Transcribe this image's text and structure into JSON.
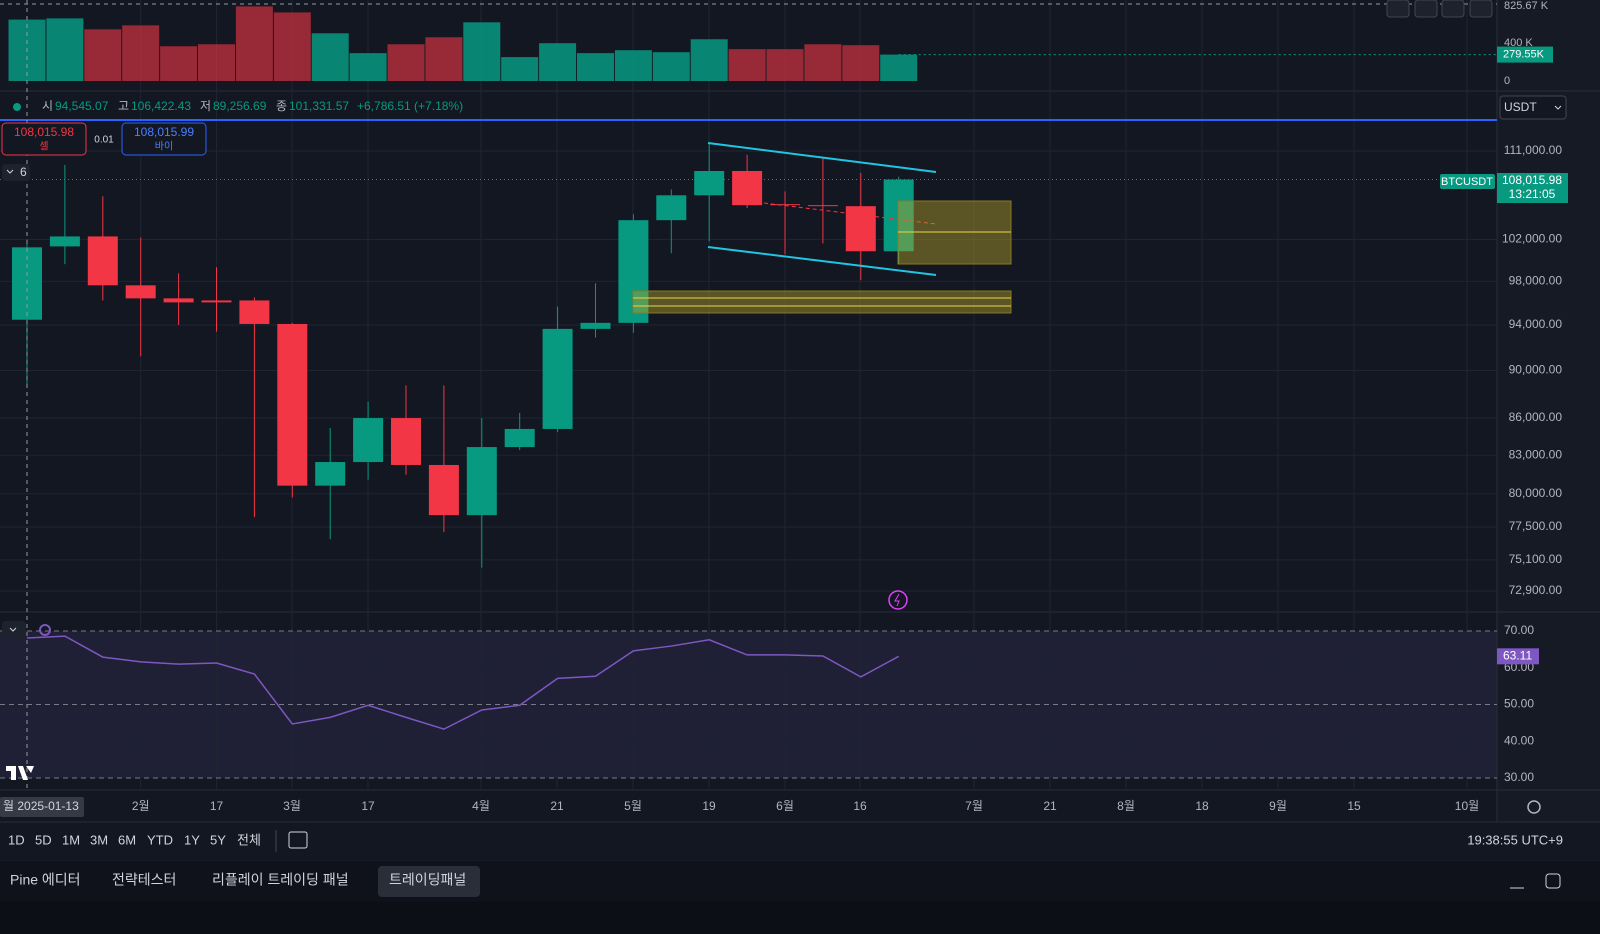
{
  "volume_axis": {
    "ticks": [
      {
        "value": 825.67,
        "label": "825.67 K"
      },
      {
        "value": 400,
        "label": "400 K"
      },
      0
    ],
    "current": {
      "value": 279.55,
      "label": "279.55K"
    }
  },
  "volume": [
    650,
    663,
    547,
    589,
    368,
    389,
    790,
    726,
    505,
    295,
    389,
    463,
    621,
    253,
    400,
    295,
    326,
    305,
    442,
    337,
    337,
    389,
    379,
    279.55
  ],
  "header": {
    "open_label": "시",
    "open": "94,545.07",
    "high_label": "고",
    "high": "106,422.43",
    "low_label": "저",
    "low": "89,256.69",
    "close_label": "종",
    "close": "101,331.57",
    "change": "+6,786.51 (+7.18%)"
  },
  "currency": "USDT",
  "order": {
    "sell": {
      "price": "108,015.98",
      "label": "셀"
    },
    "quantity": "0.01",
    "buy": {
      "price": "108,015.99",
      "label": "바이"
    }
  },
  "indicator_count": "6",
  "price_axis": {
    "ticks": [
      {
        "value": 111000,
        "label": "111,000.00"
      },
      {
        "value": 102000,
        "label": "102,000.00"
      },
      {
        "value": 98000,
        "label": "98,000.00"
      },
      {
        "value": 94000,
        "label": "94,000.00"
      },
      {
        "value": 90000,
        "label": "90,000.00"
      },
      {
        "value": 86000,
        "label": "86,000.00"
      },
      {
        "value": 83000,
        "label": "83,000.00"
      },
      {
        "value": 80000,
        "label": "80,000.00"
      },
      {
        "value": 77500,
        "label": "77,500.00"
      },
      {
        "value": 75100,
        "label": "75,100.00"
      },
      {
        "value": 72900,
        "label": "72,900.00"
      }
    ]
  },
  "symbol": "BTCUSDT",
  "last_price": {
    "value": 108015.98,
    "label": "108,015.98"
  },
  "countdown": "13:21:05",
  "candles": [
    {
      "open": 94470,
      "high": 102000,
      "low": 88810,
      "close": 101240
    },
    {
      "open": 101330,
      "high": 109540,
      "low": 99620,
      "close": 102300
    },
    {
      "open": 102300,
      "high": 106300,
      "low": 96230,
      "close": 97630
    },
    {
      "open": 97630,
      "high": 102200,
      "low": 91220,
      "close": 96420
    },
    {
      "open": 96420,
      "high": 98760,
      "low": 94000,
      "close": 96050
    },
    {
      "open": 96230,
      "high": 99330,
      "low": 93390,
      "close": 96050
    },
    {
      "open": 96230,
      "high": 96510,
      "low": 78240,
      "close": 94090
    },
    {
      "open": 94090,
      "high": 94190,
      "low": 79710,
      "close": 80620
    },
    {
      "open": 80620,
      "high": 85190,
      "low": 76600,
      "close": 82460
    },
    {
      "open": 82460,
      "high": 87360,
      "low": 81080,
      "close": 86000
    },
    {
      "open": 86000,
      "high": 88720,
      "low": 81460,
      "close": 82230
    },
    {
      "open": 82230,
      "high": 88720,
      "low": 77120,
      "close": 78380
    },
    {
      "open": 78380,
      "high": 86000,
      "low": 74550,
      "close": 83650
    },
    {
      "open": 83650,
      "high": 86430,
      "low": 83410,
      "close": 85110
    },
    {
      "open": 85110,
      "high": 95670,
      "low": 84860,
      "close": 93650
    },
    {
      "open": 93650,
      "high": 97810,
      "low": 92870,
      "close": 94190
    },
    {
      "open": 94190,
      "high": 104500,
      "low": 93300,
      "close": 103900
    },
    {
      "open": 103900,
      "high": 107000,
      "low": 100670,
      "close": 106400
    },
    {
      "open": 106400,
      "high": 111900,
      "low": 101810,
      "close": 108900
    },
    {
      "open": 108900,
      "high": 110600,
      "low": 105100,
      "close": 105400
    },
    {
      "open": 105500,
      "high": 106800,
      "low": 100570,
      "close": 105400
    },
    {
      "open": 105400,
      "high": 110260,
      "low": 101620,
      "close": 105300
    },
    {
      "open": 105300,
      "high": 108700,
      "low": 98100,
      "close": 100860
    },
    {
      "open": 100860,
      "high": 108300,
      "low": 99620,
      "close": 108015.98
    }
  ],
  "rsi": {
    "ticks": [
      {
        "value": 70,
        "label": "70.00"
      },
      {
        "value": 60,
        "label": "60.00"
      },
      {
        "value": 50,
        "label": "50.00"
      },
      {
        "value": 40,
        "label": "40.00"
      },
      {
        "value": 30,
        "label": "30.00"
      }
    ],
    "values": [
      68.1,
      68.6,
      62.9,
      61.6,
      61.0,
      61.3,
      58.3,
      44.7,
      46.5,
      49.8,
      46.5,
      43.3,
      48.5,
      49.8,
      57.1,
      57.7,
      64.6,
      65.9,
      67.6,
      63.5,
      63.5,
      63.2,
      57.5,
      63.11
    ],
    "current": 63.11
  },
  "x_axis": {
    "first_date": "월 2025-01-13",
    "labels": [
      "2월",
      "17",
      "3월",
      "17",
      "4월",
      "21",
      "5월",
      "19",
      "6월",
      "16",
      "7월",
      "21",
      "8월",
      "18",
      "9월",
      "15",
      "10월"
    ]
  },
  "toolbar": {
    "ranges": [
      "1D",
      "5D",
      "1M",
      "3M",
      "6M",
      "YTD",
      "1Y",
      "5Y",
      "전체"
    ],
    "clock": "19:38:55 UTC+9"
  },
  "tabs": [
    "Pine 에디터",
    "전략테스터",
    "리플레이 트레이딩 패널",
    "트레이딩패널"
  ]
}
